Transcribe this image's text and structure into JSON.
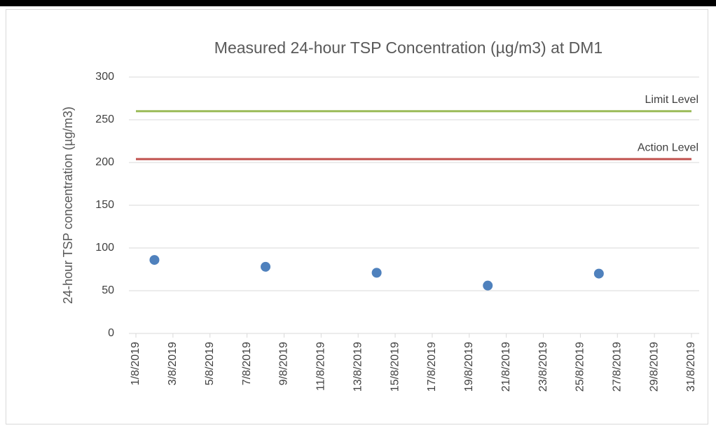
{
  "chart_data": {
    "type": "scatter",
    "title": "Measured 24-hour TSP Concentration (µg/m3) at DM1",
    "y_label": "24-hour TSP concentration (µg/m3)",
    "series": [
      {
        "name": "TSP",
        "color": "#4f81bd",
        "x": [
          "2/8/2019",
          "8/8/2019",
          "14/8/2019",
          "20/8/2019",
          "26/8/2019"
        ],
        "values": [
          86,
          78,
          71,
          56,
          70
        ]
      }
    ],
    "reference_lines": [
      {
        "label": "Limit Level",
        "value": 260,
        "color": "#9bbb59"
      },
      {
        "label": "Action Level",
        "value": 204,
        "color": "#c0504d"
      }
    ],
    "xlim": [
      "1/8/2019",
      "31/8/2019"
    ],
    "xticks": [
      "1/8/2019",
      "3/8/2019",
      "5/8/2019",
      "7/8/2019",
      "9/8/2019",
      "11/8/2019",
      "13/8/2019",
      "15/8/2019",
      "17/8/2019",
      "19/8/2019",
      "21/8/2019",
      "23/8/2019",
      "25/8/2019",
      "27/8/2019",
      "29/8/2019",
      "31/8/2019"
    ],
    "ylim": [
      0,
      300
    ],
    "yticks": [
      0,
      50,
      100,
      150,
      200,
      250,
      300
    ],
    "grid": true
  }
}
